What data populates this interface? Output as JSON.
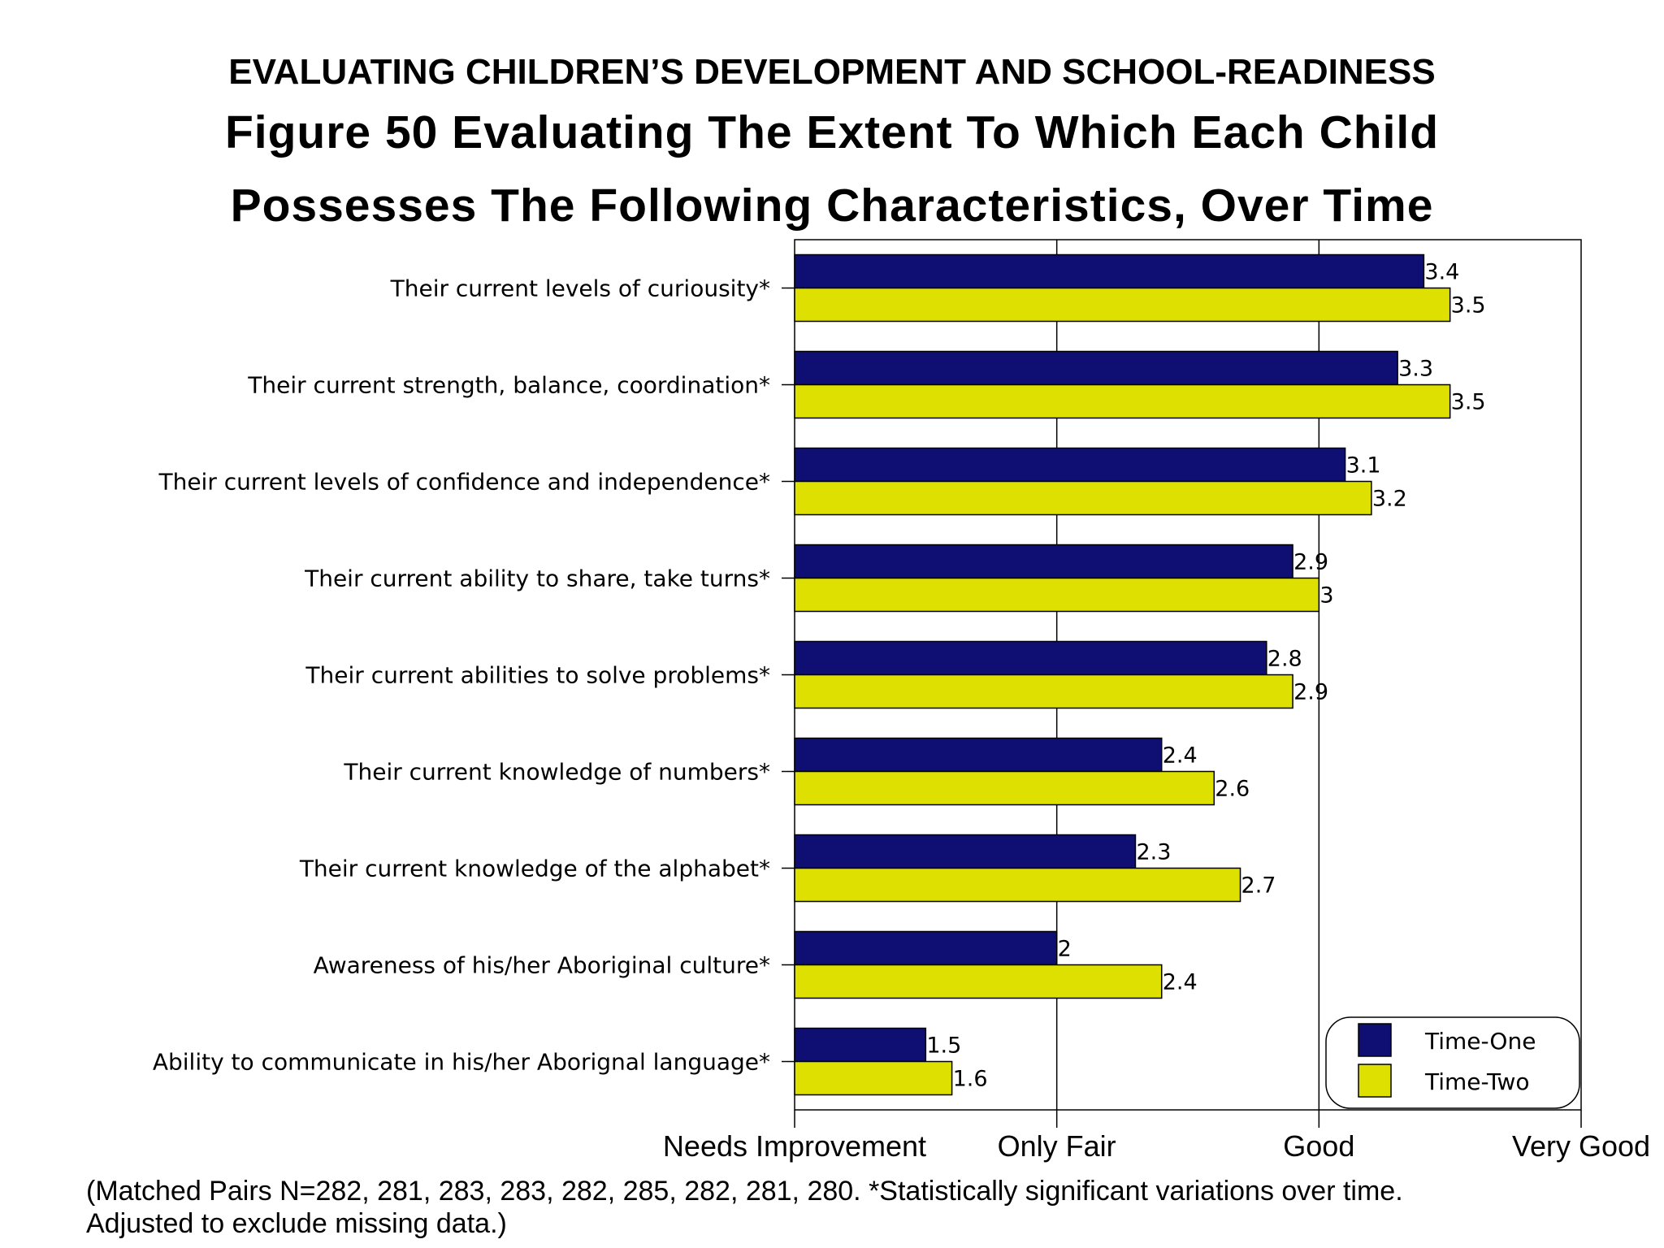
{
  "slide_heading": "EVALUATING CHILDREN’S DEVELOPMENT AND SCHOOL-READINESS",
  "figure_title_line1": "Figure 50  Evaluating The Extent To Which Each Child",
  "figure_title_line2": "Possesses The Following Characteristics, Over Time",
  "footnote_line1": "(Matched Pairs N=282, 281, 283, 283, 282, 285, 282, 281, 280.  *Statistically significant variations over time.",
  "footnote_line2": "Adjusted to exclude missing data.)",
  "chart_data": {
    "type": "bar",
    "orientation": "horizontal",
    "categories": [
      "Their current levels of curiousity*",
      "Their current strength, balance, coordination*",
      "Their current levels of confidence and independence*",
      "Their current ability to share, take turns*",
      "Their current abilities to solve problems*",
      "Their current knowledge of numbers*",
      "Their current knowledge of the alphabet*",
      "Awareness of his/her Aboriginal culture*",
      "Ability to communicate in his/her Aborignal language*"
    ],
    "series": [
      {
        "name": "Time-One",
        "color": "#0f0f73",
        "values": [
          3.4,
          3.3,
          3.1,
          2.9,
          2.8,
          2.4,
          2.3,
          2,
          1.5
        ]
      },
      {
        "name": "Time-Two",
        "color": "#dde000",
        "values": [
          3.5,
          3.5,
          3.2,
          3,
          2.9,
          2.6,
          2.7,
          2.4,
          1.6
        ]
      }
    ],
    "data_labels": [
      [
        "3.4",
        "3.3",
        "3.1",
        "2.9",
        "2.8",
        "2.4",
        "2.3",
        "2",
        "1.5"
      ],
      [
        "3.5",
        "3.5",
        "3.2",
        "3",
        "2.9",
        "2.6",
        "2.7",
        "2.4",
        "1.6"
      ]
    ],
    "xlim": [
      1,
      4
    ],
    "x_ticks": [
      1,
      2,
      3,
      4
    ],
    "x_tick_labels": [
      "Needs Improvement",
      "Only Fair",
      "Good",
      "Very Good"
    ],
    "grid": "vertical",
    "legend": "bottom-right"
  }
}
